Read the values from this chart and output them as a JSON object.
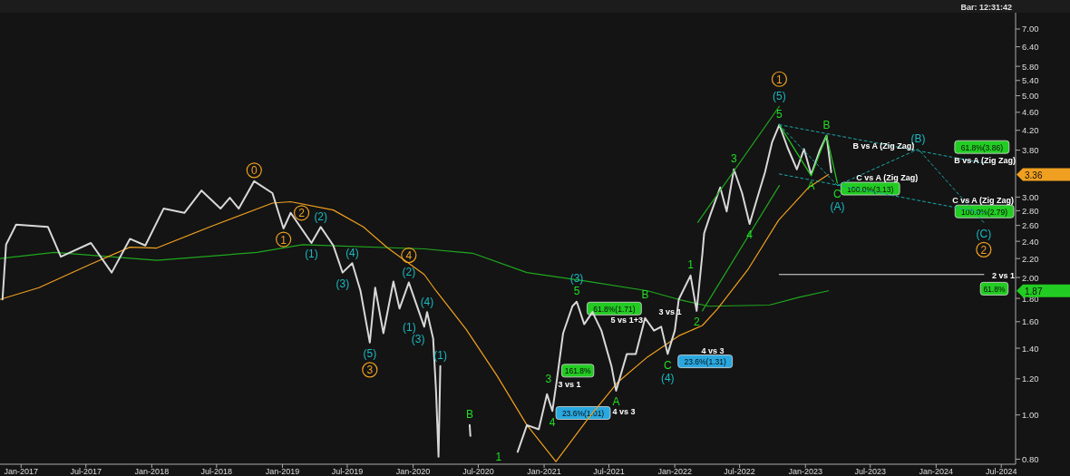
{
  "chart_data": {
    "type": "line",
    "subtitle": "Bar: 12:31:42",
    "log": true,
    "xlim": [
      "2016-11-03",
      "2024-08-10"
    ],
    "xticks": [
      {
        "value": "2017-01-01",
        "label": "Jan-2017"
      },
      {
        "value": "2017-07-01",
        "label": "Jul-2017"
      },
      {
        "value": "2018-01-01",
        "label": "Jan-2018"
      },
      {
        "value": "2018-07-01",
        "label": "Jul-2018"
      },
      {
        "value": "2019-01-01",
        "label": "Jan-2019"
      },
      {
        "value": "2019-07-01",
        "label": "Jul-2019"
      },
      {
        "value": "2020-01-01",
        "label": "Jan-2020"
      },
      {
        "value": "2020-07-01",
        "label": "Jul-2020"
      },
      {
        "value": "2021-01-01",
        "label": "Jan-2021"
      },
      {
        "value": "2021-07-01",
        "label": "Jul-2021"
      },
      {
        "value": "2022-01-01",
        "label": "Jan-2022"
      },
      {
        "value": "2022-07-01",
        "label": "Jul-2022"
      },
      {
        "value": "2023-01-01",
        "label": "Jan-2023"
      },
      {
        "value": "2023-07-01",
        "label": "Jul-2023"
      },
      {
        "value": "2024-01-01",
        "label": "Jan-2024"
      },
      {
        "value": "2024-07-01",
        "label": "Jul-2024"
      }
    ],
    "ylim": [
      0.78,
      7.6
    ],
    "yticks": [
      {
        "value": 0.8,
        "label": "0.80"
      },
      {
        "value": 1,
        "label": "1.00"
      },
      {
        "value": 1.2,
        "label": "1.20"
      },
      {
        "value": 1.4,
        "label": "1.40"
      },
      {
        "value": 1.6,
        "label": "1.60"
      },
      {
        "value": 1.8,
        "label": "1.80"
      },
      {
        "value": 2,
        "label": "2.00"
      },
      {
        "value": 2.2,
        "label": "2.20"
      },
      {
        "value": 2.4,
        "label": "2.40"
      },
      {
        "value": 2.6,
        "label": "2.60"
      },
      {
        "value": 2.8,
        "label": "2.80"
      },
      {
        "value": 3,
        "label": "3.00"
      },
      {
        "value": 3.8,
        "label": "3.80"
      },
      {
        "value": 4.2,
        "label": "4.20"
      },
      {
        "value": 4.6,
        "label": "4.60"
      },
      {
        "value": 5,
        "label": "5.00"
      },
      {
        "value": 5.4,
        "label": "5.40"
      },
      {
        "value": 5.8,
        "label": "5.80"
      },
      {
        "value": 6.4,
        "label": "6.40"
      },
      {
        "value": 7,
        "label": "7.00"
      }
    ],
    "series": [
      {
        "color": "#1fa81f",
        "x": [
          "2016-11-03",
          "2017-04-04",
          "2018-01-15",
          "2018-10-22",
          "2019-02-26",
          "2020-02-01",
          "2020-06-15",
          "2020-11-14",
          "2021-05-03",
          "2021-10-17",
          "2022-01-12",
          "2022-04-05",
          "2022-09-22",
          "2022-12-14",
          "2023-03-06"
        ],
        "values": [
          2.2,
          2.27,
          2.18,
          2.27,
          2.36,
          2.31,
          2.26,
          2.05,
          1.96,
          1.87,
          1.79,
          1.73,
          1.74,
          1.81,
          1.87
        ]
      },
      {
        "color": "#f0a020",
        "x": [
          "2016-11-03",
          "2017-02-20",
          "2017-07-15",
          "2017-11-01",
          "2018-01-15",
          "2018-06-17",
          "2018-12-04",
          "2019-01-24",
          "2019-05-23",
          "2019-08-15",
          "2019-10-22",
          "2020-02-01",
          "2020-03-05",
          "2020-05-28",
          "2020-08-22",
          "2020-11-14",
          "2021-02-03",
          "2021-05-03",
          "2021-07-26",
          "2021-10-17",
          "2022-01-12",
          "2022-03-19",
          "2022-05-01",
          "2022-07-24",
          "2022-10-18",
          "2023-01-10",
          "2023-03-06"
        ],
        "values": [
          1.79,
          1.9,
          2.14,
          2.33,
          2.32,
          2.59,
          2.91,
          2.93,
          2.81,
          2.58,
          2.32,
          2.03,
          1.87,
          1.54,
          1.22,
          0.95,
          0.79,
          0.98,
          1.18,
          1.34,
          1.49,
          1.57,
          1.71,
          2.08,
          2.67,
          3.15,
          3.36
        ]
      },
      {
        "color": "#d8d8d8",
        "x": [
          "2016-11-10",
          "2016-11-20",
          "2016-12-18",
          "2017-03-17",
          "2017-04-22",
          "2017-07-15",
          "2017-09-11",
          "2017-11-01",
          "2017-12-14",
          "2018-02-03",
          "2018-04-02",
          "2018-05-20",
          "2018-07-12",
          "2018-08-07",
          "2018-09-01",
          "2018-10-14",
          "2018-12-04",
          "2019-01-04",
          "2019-01-24",
          "2019-03-23",
          "2019-04-18",
          "2019-05-23",
          "2019-06-18",
          "2019-07-15",
          "2019-08-07",
          "2019-09-02",
          "2019-09-17",
          "2019-10-10",
          "2019-11-07",
          "2019-11-24",
          "2019-12-20",
          "2020-02-01",
          "2020-02-09",
          "2020-02-26",
          "2020-03-05",
          "2020-03-12",
          "2020-03-17",
          "2020-03-24",
          "2020-06-07",
          "2020-06-09",
          "2020-06-20",
          "2020-10-19",
          "2020-11-14",
          "2020-12-17",
          "2021-01-09",
          "2021-01-24",
          "2021-02-06",
          "2021-02-23",
          "2021-03-21",
          "2021-04-02",
          "2021-04-23",
          "2021-05-16",
          "2021-06-10",
          "2021-07-08",
          "2021-07-21",
          "2021-08-20",
          "2021-09-14",
          "2021-10-10",
          "2021-11-04",
          "2021-11-24",
          "2021-12-12",
          "2022-01-01",
          "2022-01-12",
          "2022-02-14",
          "2022-03-03",
          "2022-03-19",
          "2022-03-24",
          "2022-04-10",
          "2022-05-08",
          "2022-05-26",
          "2022-06-15",
          "2022-07-08",
          "2022-07-29",
          "2022-08-18",
          "2022-09-10",
          "2022-09-30",
          "2022-10-20",
          "2022-11-12",
          "2022-12-08",
          "2022-12-28",
          "2023-01-17",
          "2023-02-09",
          "2023-03-01",
          "2023-03-14"
        ],
        "values": [
          1.79,
          2.36,
          2.61,
          2.58,
          2.22,
          2.38,
          2.05,
          2.43,
          2.35,
          2.83,
          2.77,
          3.1,
          2.83,
          2.99,
          2.83,
          3.25,
          3.06,
          2.56,
          2.77,
          2.38,
          2.58,
          2.35,
          2.05,
          2.15,
          1.87,
          1.44,
          1.9,
          1.51,
          1.96,
          1.71,
          1.95,
          1.56,
          1.68,
          1.47,
          1.13,
          0.81,
          1.28,
          null,
          0.95,
          0.9,
          null,
          0.83,
          0.95,
          0.93,
          1.11,
          1.02,
          1.2,
          1.51,
          1.73,
          1.77,
          1.58,
          1.68,
          1.53,
          1.28,
          1.13,
          1.36,
          1.36,
          1.63,
          1.53,
          1.56,
          1.36,
          1.53,
          1.79,
          2.02,
          1.69,
          2.25,
          2.5,
          2.74,
          3.15,
          2.79,
          3.45,
          3.06,
          2.62,
          2.96,
          3.4,
          3.96,
          4.32,
          3.85,
          3.45,
          3.82,
          3.36,
          3.78,
          4.09,
          3.4
        ]
      },
      {
        "color": "#1fa81f",
        "x": [
          "2022-03-06",
          "2022-10-20"
        ],
        "values": [
          2.64,
          4.74
        ]
      },
      {
        "color": "#1fa81f",
        "x": [
          "2022-03-19",
          "2022-10-20"
        ],
        "values": [
          1.69,
          3.18
        ]
      },
      {
        "color": "#22cc22",
        "x": [
          "2022-10-20",
          "2023-01-17",
          "2023-03-01",
          "2023-03-31"
        ],
        "values": [
          4.32,
          3.34,
          4.09,
          3.22
        ]
      },
      {
        "color": "#1aa8a8",
        "line_style": "dashed",
        "x": [
          "2022-10-20",
          "2024-05-13"
        ],
        "values": [
          4.32,
          3.56
        ]
      },
      {
        "color": "#1aa8a8",
        "line_style": "dashed",
        "x": [
          "2022-10-20",
          "2024-05-13"
        ],
        "values": [
          3.37,
          2.77
        ]
      },
      {
        "color": "#1aa8a8",
        "line_style": "dashed",
        "x": [
          "2022-10-20",
          "2023-03-31"
        ],
        "values": [
          4.32,
          3.18
        ]
      },
      {
        "color": "#1aa8a8",
        "line_style": "dashed",
        "x": [
          "2023-03-31",
          "2023-11-12",
          "2024-05-13"
        ],
        "values": [
          3.18,
          3.82,
          2.64
        ]
      },
      {
        "color": "#e0e0e0",
        "x": [
          "2022-10-20",
          "2024-05-13"
        ],
        "values": [
          2.03,
          2.03
        ]
      }
    ],
    "annotations": [
      {
        "text": "0",
        "x": "2018-10-14",
        "y": 3.25
      },
      {
        "text": "1",
        "x": "2019-01-04",
        "y": 2.56
      },
      {
        "text": "2",
        "x": "2019-01-24",
        "y": 2.77
      },
      {
        "text": "3",
        "x": "2019-09-02",
        "y": 1.44
      },
      {
        "text": "4",
        "x": "2019-12-20",
        "y": 1.95
      },
      {
        "text": "1",
        "x": "2022-10-20",
        "y": 4.74
      },
      {
        "text": "2",
        "x": "2024-05-13",
        "y": 2.64
      },
      {
        "text": "(2)",
        "x": "2019-04-18",
        "y": 2.58
      },
      {
        "text": "(1)",
        "x": "2019-03-23",
        "y": 2.38
      },
      {
        "text": "(4)",
        "x": "2019-07-15",
        "y": 2.15
      },
      {
        "text": "(3)",
        "x": "2019-06-18",
        "y": 2.05
      },
      {
        "text": "(5)",
        "x": "2019-09-02",
        "y": 1.44
      },
      {
        "text": "(2)",
        "x": "2019-12-20",
        "y": 1.95
      },
      {
        "text": "(4)",
        "x": "2020-02-09",
        "y": 1.68
      },
      {
        "text": "(1)",
        "x": "2020-02-01",
        "y": 1.56
      },
      {
        "text": "(3)",
        "x": "2020-02-26",
        "y": 1.47
      },
      {
        "text": "(1)",
        "x": "2020-03-17",
        "y": 1.28
      },
      {
        "text": "(3)",
        "x": "2021-04-02",
        "y": 1.77
      },
      {
        "text": "(4)",
        "x": "2021-12-12",
        "y": 1.36
      },
      {
        "text": "(5)",
        "x": "2022-10-20",
        "y": 4.74
      },
      {
        "text": "(A)",
        "x": "2023-03-31",
        "y": 3.22
      },
      {
        "text": "(B)",
        "x": "2023-11-12",
        "y": 3.82
      },
      {
        "text": "(C)",
        "x": "2024-05-13",
        "y": 2.64
      },
      {
        "text": "B",
        "x": "2020-06-07",
        "y": 0.95
      },
      {
        "text": "4",
        "x": "2021-01-24",
        "y": 1.02
      },
      {
        "text": "3",
        "x": "2021-02-06",
        "y": 1.2
      },
      {
        "text": "5",
        "x": "2021-04-02",
        "y": 1.77
      },
      {
        "text": "A",
        "x": "2021-07-21",
        "y": 1.13
      },
      {
        "text": "B",
        "x": "2021-10-10",
        "y": 1.63
      },
      {
        "text": "C",
        "x": "2021-12-12",
        "y": 1.36
      },
      {
        "text": "1",
        "x": "2022-02-14",
        "y": 2.02
      },
      {
        "text": "2",
        "x": "2022-03-03",
        "y": 1.69
      },
      {
        "text": "3",
        "x": "2022-06-15",
        "y": 3.45
      },
      {
        "text": "4",
        "x": "2022-07-29",
        "y": 2.62
      },
      {
        "text": "5",
        "x": "2022-10-20",
        "y": 4.32
      },
      {
        "text": "A",
        "x": "2023-01-17",
        "y": 3.36
      },
      {
        "text": "B",
        "x": "2023-03-01",
        "y": 4.09
      },
      {
        "text": "C",
        "x": "2023-03-31",
        "y": 3.22
      },
      "1",
      "3 vs 1",
      "5 vs 1+3",
      "4 vs 3",
      "3 vs 1",
      "4 vs 3",
      "B vs A (Zig Zag)",
      "B vs A (Zig Zag)",
      "C vs A (Zig Zag)",
      "C vs A (Zig Zag)",
      "2 vs 1",
      "61.8%(1.71)",
      "161.8%",
      "23.6%(1.01)",
      "23.6%(1.31)",
      "61.8%(3.86)",
      "100.0%(3.13)",
      "100.0%(2.79)",
      "61.8%",
      "3.36",
      "1.87"
    ]
  }
}
